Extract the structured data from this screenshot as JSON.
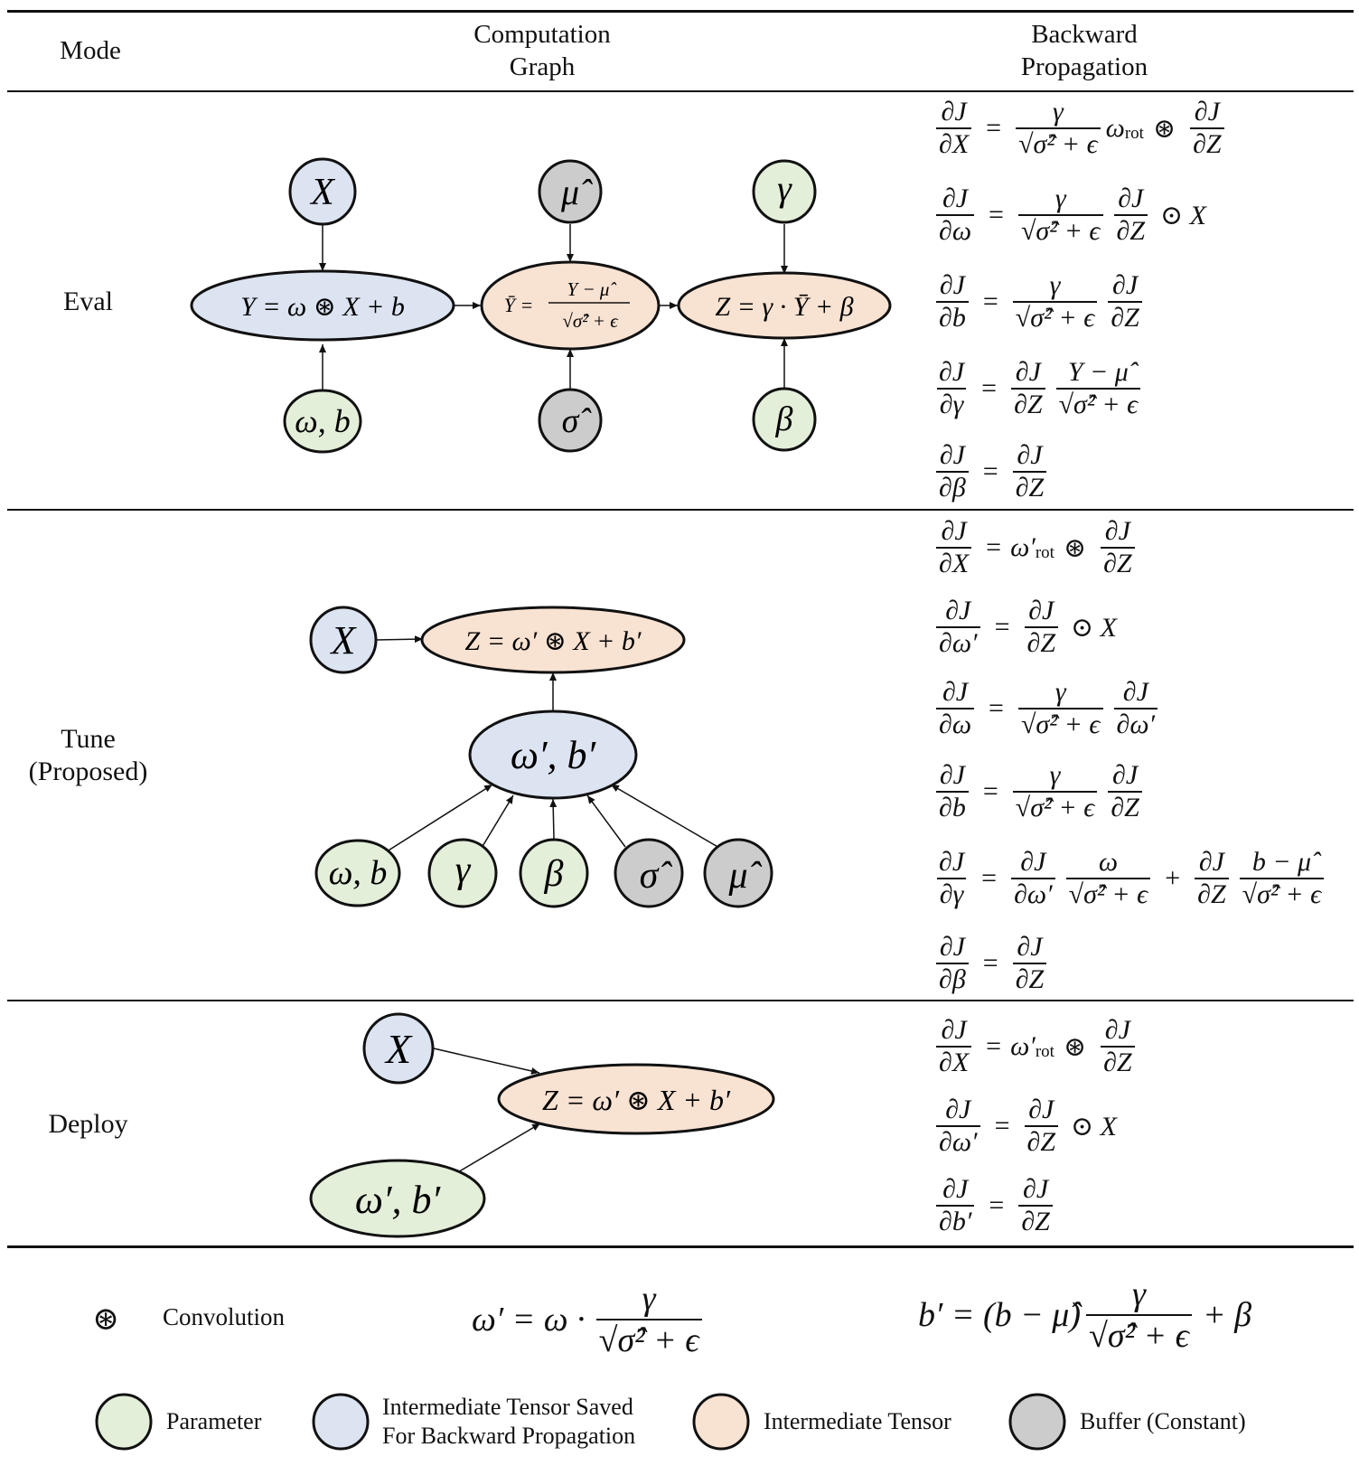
{
  "header": {
    "col_mode": "Mode",
    "col_graph": "Computation\nGraph",
    "col_backward": "Backward\nPropagation"
  },
  "modes": {
    "eval": "Eval",
    "tune": "Tune\n(Proposed)",
    "deploy": "Deploy"
  },
  "eval_graph": {
    "x": "X",
    "mu": "μ̂",
    "gamma": "γ",
    "wb": "ω, b",
    "sigma": "σ̂",
    "beta": "β",
    "y_node": "Y = ω ⊛ X + b",
    "ybar_lhs": "Ȳ =",
    "ybar_num": "Y − μ̂",
    "ybar_den": "√σ̂² + ϵ",
    "z_node": "Z = γ · Ȳ + β"
  },
  "tune_graph": {
    "x": "X",
    "z_node": "Z = ω′ ⊛ X + b′",
    "wb_prime": "ω′, b′",
    "wb": "ω, b",
    "gamma": "γ",
    "beta": "β",
    "sigma": "σ̂",
    "mu": "μ̂"
  },
  "deploy_graph": {
    "x": "X",
    "z_node": "Z = ω′ ⊛ X + b′",
    "wb_prime": "ω′, b′"
  },
  "eval_eqs": [
    {
      "lhs_num": "∂J",
      "lhs_den": "∂X",
      "r1_num": "γ",
      "r1_den": "√σ̂² + ϵ",
      "r_mid": "ω",
      "r_sub": "rot",
      "op": "⊛",
      "r2_num": "∂J",
      "r2_den": "∂Z"
    },
    {
      "lhs_num": "∂J",
      "lhs_den": "∂ω",
      "r1_num": "γ",
      "r1_den": "√σ̂² + ϵ",
      "r2_num": "∂J",
      "r2_den": "∂Z",
      "tail": "⊙ X"
    },
    {
      "lhs_num": "∂J",
      "lhs_den": "∂b",
      "r1_num": "γ",
      "r1_den": "√σ̂² + ϵ",
      "r2_num": "∂J",
      "r2_den": "∂Z"
    },
    {
      "lhs_num": "∂J",
      "lhs_den": "∂γ",
      "r1_num": "∂J",
      "r1_den": "∂Z",
      "r2_num": "Y − μ̂",
      "r2_den": "√σ̂² + ϵ"
    },
    {
      "lhs_num": "∂J",
      "lhs_den": "∂β",
      "r1_num": "∂J",
      "r1_den": "∂Z"
    }
  ],
  "tune_eqs": [
    {
      "lhs_num": "∂J",
      "lhs_den": "∂X",
      "r_mid": "ω′",
      "r_sub": "rot",
      "op": "⊛",
      "r1_num": "∂J",
      "r1_den": "∂Z"
    },
    {
      "lhs_num": "∂J",
      "lhs_den": "∂ω′",
      "r1_num": "∂J",
      "r1_den": "∂Z",
      "tail": "⊙ X"
    },
    {
      "lhs_num": "∂J",
      "lhs_den": "∂ω",
      "r1_num": "γ",
      "r1_den": "√σ̂² + ϵ",
      "r2_num": "∂J",
      "r2_den": "∂ω′"
    },
    {
      "lhs_num": "∂J",
      "lhs_den": "∂b",
      "r1_num": "γ",
      "r1_den": "√σ̂² + ϵ",
      "r2_num": "∂J",
      "r2_den": "∂Z"
    },
    {
      "lhs_num": "∂J",
      "lhs_den": "∂γ",
      "r1_num": "∂J",
      "r1_den": "∂ω′",
      "r2_num": "ω",
      "r2_den": "√σ̂² + ϵ",
      "plus": "+",
      "r3_num": "∂J",
      "r3_den": "∂Z",
      "r4_num": "b − μ̂",
      "r4_den": "√σ̂² + ϵ"
    },
    {
      "lhs_num": "∂J",
      "lhs_den": "∂β",
      "r1_num": "∂J",
      "r1_den": "∂Z"
    }
  ],
  "deploy_eqs": [
    {
      "lhs_num": "∂J",
      "lhs_den": "∂X",
      "r_mid": "ω′",
      "r_sub": "rot",
      "op": "⊛",
      "r1_num": "∂J",
      "r1_den": "∂Z"
    },
    {
      "lhs_num": "∂J",
      "lhs_den": "∂ω′",
      "r1_num": "∂J",
      "r1_den": "∂Z",
      "tail": "⊙ X"
    },
    {
      "lhs_num": "∂J",
      "lhs_den": "∂b′",
      "r1_num": "∂J",
      "r1_den": "∂Z"
    }
  ],
  "footer": {
    "conv_symbol": "⊛",
    "conv_label": "Convolution",
    "w_prime_lhs": "ω′ = ω ·",
    "w_prime_num": "γ",
    "w_prime_den": "√σ̂² + ϵ",
    "b_prime_lhs": "b′ = (b − μ̂)",
    "b_prime_num": "γ",
    "b_prime_den": "√σ̂² + ϵ",
    "b_prime_tail": "+ β"
  },
  "legend": {
    "parameter": "Parameter",
    "saved": "Intermediate Tensor Saved\nFor Backward Propagation",
    "intermediate": "Intermediate Tensor",
    "buffer": "Buffer (Constant)"
  },
  "colors": {
    "parameter": "#e3efd9",
    "saved": "#dce3f1",
    "intermediate": "#f8e2d2",
    "buffer": "#cccccc",
    "stroke": "#111111"
  }
}
